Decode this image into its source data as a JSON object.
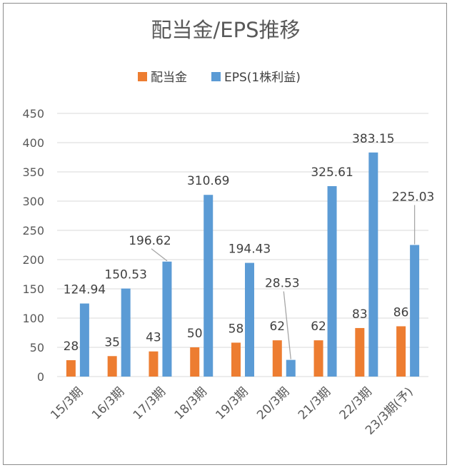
{
  "chart_data": {
    "type": "bar",
    "title": "配当金/EPS推移",
    "categories": [
      "15/3期",
      "16/3期",
      "17/3期",
      "18/3期",
      "19/3期",
      "20/3期",
      "21/3期",
      "22/3期",
      "23/3期(予)"
    ],
    "series": [
      {
        "name": "配当金",
        "color": "#ed7d31",
        "values": [
          28,
          35,
          43,
          50,
          58,
          62,
          62,
          83,
          86
        ],
        "labels": [
          "28",
          "35",
          "43",
          "50",
          "58",
          "62",
          "62",
          "83",
          "86"
        ]
      },
      {
        "name": "EPS(1株利益)",
        "color": "#5b9bd5",
        "values": [
          124.94,
          150.53,
          196.62,
          310.69,
          194.43,
          28.53,
          325.61,
          383.15,
          225.03
        ],
        "labels": [
          "124.94",
          "150.53",
          "196.62",
          "310.69",
          "194.43",
          "28.53",
          "325.61",
          "383.15",
          "225.03"
        ]
      }
    ],
    "ylim": [
      0,
      450
    ],
    "yticks": [
      "0",
      "50",
      "100",
      "150",
      "200",
      "250",
      "300",
      "350",
      "400",
      "450"
    ],
    "grid": true,
    "legend": "top"
  }
}
